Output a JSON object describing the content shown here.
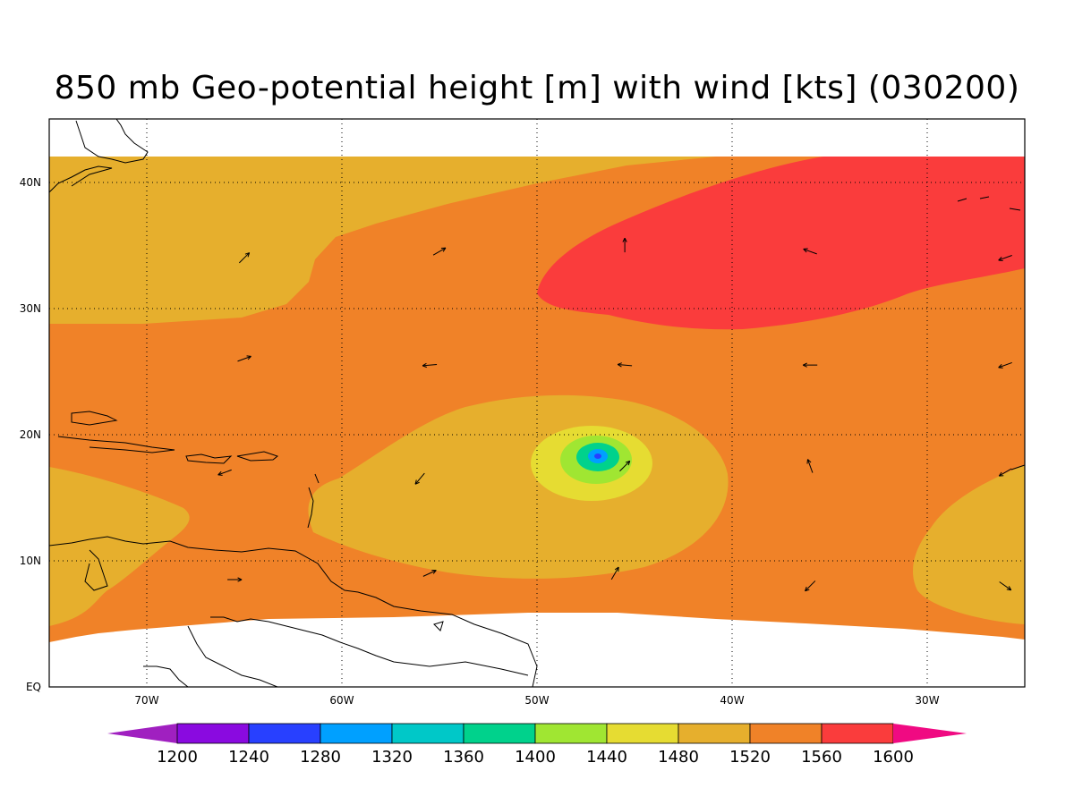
{
  "title": "850 mb Geo-potential height [m] with wind [kts] (030200)",
  "map": {
    "lon_range": [
      -75,
      -25
    ],
    "lat_range": [
      0,
      45
    ],
    "lon_ticks": [
      {
        "lon": -70,
        "label": "70W"
      },
      {
        "lon": -60,
        "label": "60W"
      },
      {
        "lon": -50,
        "label": "50W"
      },
      {
        "lon": -40,
        "label": "40W"
      },
      {
        "lon": -30,
        "label": "30W"
      }
    ],
    "lat_ticks": [
      {
        "lat": 0,
        "label": "EQ"
      },
      {
        "lat": 10,
        "label": "10N"
      },
      {
        "lat": 20,
        "label": "20N"
      },
      {
        "lat": 30,
        "label": "30N"
      },
      {
        "lat": 40,
        "label": "40N"
      }
    ],
    "grid": "dotted"
  },
  "colorbar": {
    "levels": [
      1200,
      1240,
      1280,
      1320,
      1360,
      1400,
      1440,
      1480,
      1520,
      1560,
      1600
    ],
    "colors": [
      "#a020c0",
      "#8a0ae0",
      "#2840ff",
      "#00a0ff",
      "#00c8c8",
      "#00d28c",
      "#a0e632",
      "#e6dc32",
      "#e6af2d",
      "#f08228",
      "#fa3c3c",
      "#f00a82"
    ]
  },
  "wind_vectors": [
    {
      "lon": -65,
      "lat": 34,
      "dir_deg": 45
    },
    {
      "lon": -55,
      "lat": 34.5,
      "dir_deg": 30
    },
    {
      "lon": -45.5,
      "lat": 35,
      "dir_deg": 90
    },
    {
      "lon": -36,
      "lat": 34.5,
      "dir_deg": 160
    },
    {
      "lon": -26,
      "lat": 34,
      "dir_deg": 200
    },
    {
      "lon": -65,
      "lat": 26,
      "dir_deg": 20
    },
    {
      "lon": -55.5,
      "lat": 25.5,
      "dir_deg": 185
    },
    {
      "lon": -45.5,
      "lat": 25.5,
      "dir_deg": 175
    },
    {
      "lon": -36,
      "lat": 25.5,
      "dir_deg": 180
    },
    {
      "lon": -26,
      "lat": 25.5,
      "dir_deg": 200
    },
    {
      "lon": -66,
      "lat": 17,
      "dir_deg": 200
    },
    {
      "lon": -56,
      "lat": 16.5,
      "dir_deg": 230
    },
    {
      "lon": -45.5,
      "lat": 17.5,
      "dir_deg": 45
    },
    {
      "lon": -36,
      "lat": 17.5,
      "dir_deg": 110
    },
    {
      "lon": -26,
      "lat": 17,
      "dir_deg": 210
    },
    {
      "lon": -65.5,
      "lat": 8.5,
      "dir_deg": 0
    },
    {
      "lon": -55.5,
      "lat": 9,
      "dir_deg": 25
    },
    {
      "lon": -46,
      "lat": 9,
      "dir_deg": 60
    },
    {
      "lon": -36,
      "lat": 8,
      "dir_deg": 225
    },
    {
      "lon": -26,
      "lat": 8,
      "dir_deg": 325
    }
  ]
}
